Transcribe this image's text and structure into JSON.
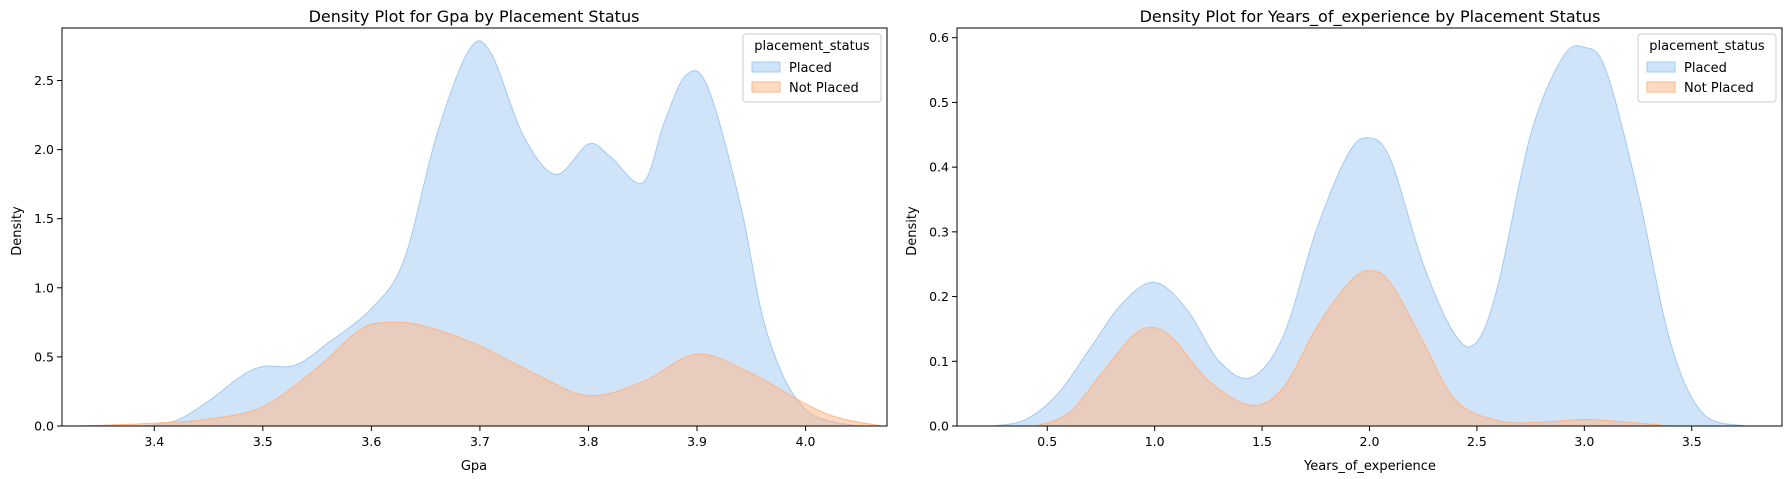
{
  "colors": {
    "placed_fill": "#a1c9f4",
    "placed_line": "#a1c9f4",
    "not_placed_fill": "#ffb482",
    "not_placed_line": "#ffb482"
  },
  "chart_data": [
    {
      "type": "area",
      "title": "Density Plot for Gpa by Placement Status",
      "xlabel": "Gpa",
      "ylabel": "Density",
      "xlim": [
        3.315,
        4.075
      ],
      "ylim": [
        0,
        2.88
      ],
      "xticks": [
        3.4,
        3.5,
        3.6,
        3.7,
        3.8,
        3.9,
        4.0
      ],
      "xtick_labels": [
        "3.4",
        "3.5",
        "3.6",
        "3.7",
        "3.8",
        "3.9",
        "4.0"
      ],
      "yticks": [
        0.0,
        0.5,
        1.0,
        1.5,
        2.0,
        2.5
      ],
      "ytick_labels": [
        "0.0",
        "0.5",
        "1.0",
        "1.5",
        "2.0",
        "2.5"
      ],
      "legend": {
        "title": "placement_status",
        "position": "top-right",
        "entries": [
          "Placed",
          "Not Placed"
        ]
      },
      "series": [
        {
          "name": "Placed",
          "x": [
            3.39,
            3.42,
            3.45,
            3.48,
            3.5,
            3.53,
            3.56,
            3.6,
            3.63,
            3.66,
            3.69,
            3.71,
            3.74,
            3.77,
            3.8,
            3.82,
            3.85,
            3.87,
            3.89,
            3.91,
            3.94,
            3.96,
            3.98,
            4.0,
            4.02,
            4.05
          ],
          "y": [
            0.0,
            0.04,
            0.18,
            0.36,
            0.43,
            0.44,
            0.6,
            0.85,
            1.2,
            2.1,
            2.72,
            2.7,
            2.1,
            1.82,
            2.04,
            1.95,
            1.76,
            2.2,
            2.54,
            2.45,
            1.6,
            0.8,
            0.35,
            0.12,
            0.04,
            0.0
          ]
        },
        {
          "name": "Not Placed",
          "x": [
            3.33,
            3.4,
            3.45,
            3.5,
            3.55,
            3.59,
            3.62,
            3.65,
            3.7,
            3.75,
            3.8,
            3.85,
            3.9,
            3.95,
            4.0,
            4.03,
            4.07
          ],
          "y": [
            0.0,
            0.02,
            0.05,
            0.14,
            0.42,
            0.7,
            0.75,
            0.72,
            0.58,
            0.38,
            0.22,
            0.32,
            0.52,
            0.38,
            0.16,
            0.06,
            0.0
          ]
        }
      ]
    },
    {
      "type": "area",
      "title": "Density Plot for Years_of_experience by Placement Status",
      "xlabel": "Years_of_experience",
      "ylabel": "Density",
      "xlim": [
        0.08,
        3.92
      ],
      "ylim": [
        0,
        0.615
      ],
      "xticks": [
        0.5,
        1.0,
        1.5,
        2.0,
        2.5,
        3.0,
        3.5
      ],
      "xtick_labels": [
        "0.5",
        "1.0",
        "1.5",
        "2.0",
        "2.5",
        "3.0",
        "3.5"
      ],
      "yticks": [
        0.0,
        0.1,
        0.2,
        0.3,
        0.4,
        0.5,
        0.6
      ],
      "ytick_labels": [
        "0.0",
        "0.1",
        "0.2",
        "0.3",
        "0.4",
        "0.5",
        "0.6"
      ],
      "legend": {
        "title": "placement_status",
        "position": "top-right",
        "entries": [
          "Placed",
          "Not Placed"
        ]
      },
      "series": [
        {
          "name": "Placed",
          "x": [
            0.25,
            0.4,
            0.55,
            0.7,
            0.85,
            1.0,
            1.15,
            1.3,
            1.45,
            1.6,
            1.75,
            1.9,
            2.0,
            2.1,
            2.25,
            2.4,
            2.5,
            2.6,
            2.75,
            2.9,
            3.0,
            3.1,
            3.25,
            3.4,
            3.55,
            3.75
          ],
          "y": [
            0.0,
            0.01,
            0.05,
            0.12,
            0.19,
            0.222,
            0.18,
            0.1,
            0.075,
            0.14,
            0.3,
            0.42,
            0.445,
            0.41,
            0.25,
            0.14,
            0.13,
            0.22,
            0.45,
            0.57,
            0.585,
            0.55,
            0.36,
            0.13,
            0.02,
            0.0
          ]
        },
        {
          "name": "Not Placed",
          "x": [
            0.45,
            0.6,
            0.75,
            0.9,
            1.0,
            1.1,
            1.25,
            1.45,
            1.6,
            1.75,
            1.9,
            2.0,
            2.1,
            2.25,
            2.4,
            2.6,
            2.8,
            3.0,
            3.2,
            3.4
          ],
          "y": [
            0.0,
            0.02,
            0.08,
            0.14,
            0.152,
            0.13,
            0.07,
            0.032,
            0.06,
            0.15,
            0.22,
            0.24,
            0.22,
            0.13,
            0.04,
            0.008,
            0.006,
            0.01,
            0.006,
            0.0
          ]
        }
      ]
    }
  ]
}
